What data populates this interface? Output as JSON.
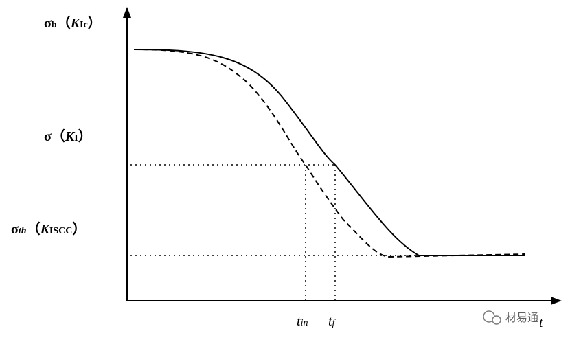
{
  "labels": {
    "y_top": [
      "σ",
      "b",
      "（",
      "K",
      "Ic",
      "）"
    ],
    "y_mid": [
      "σ",
      "（",
      "K",
      "I",
      "）"
    ],
    "y_low": [
      "σ",
      "th",
      "（",
      "K",
      "ISCC",
      "）"
    ],
    "x_in": [
      "t",
      "in"
    ],
    "x_f": [
      "t",
      "f"
    ],
    "x_axis": "t"
  },
  "watermark": "材易通"
}
